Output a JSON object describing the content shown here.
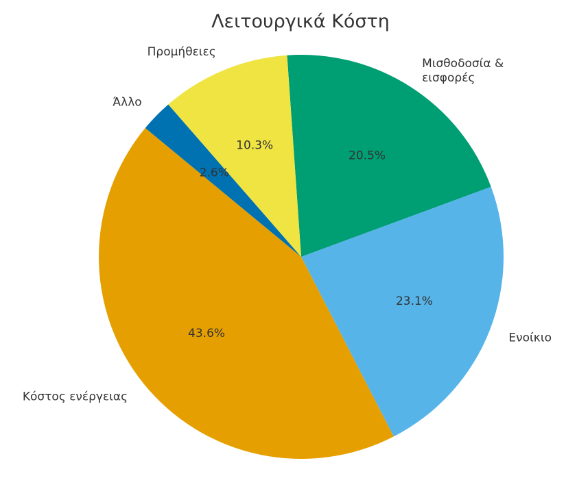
{
  "chart_data": {
    "type": "pie",
    "title": "Λειτουργικά Κόστη",
    "slices": [
      {
        "label": "Μισθοδοσία &\nεισφορές",
        "value": 20.5,
        "pct_label": "20.5%",
        "color": "#009E73"
      },
      {
        "label": "Ενοίκιο",
        "value": 23.1,
        "pct_label": "23.1%",
        "color": "#56B4E9"
      },
      {
        "label": "Κόστος ενέργειας",
        "value": 43.6,
        "pct_label": "43.6%",
        "color": "#E69F00"
      },
      {
        "label": "Άλλο",
        "value": 2.6,
        "pct_label": "2.6%",
        "color": "#0072B2"
      },
      {
        "label": "Προμήθειες",
        "value": 10.3,
        "pct_label": "10.3%",
        "color": "#F0E442"
      }
    ],
    "legend": false
  }
}
